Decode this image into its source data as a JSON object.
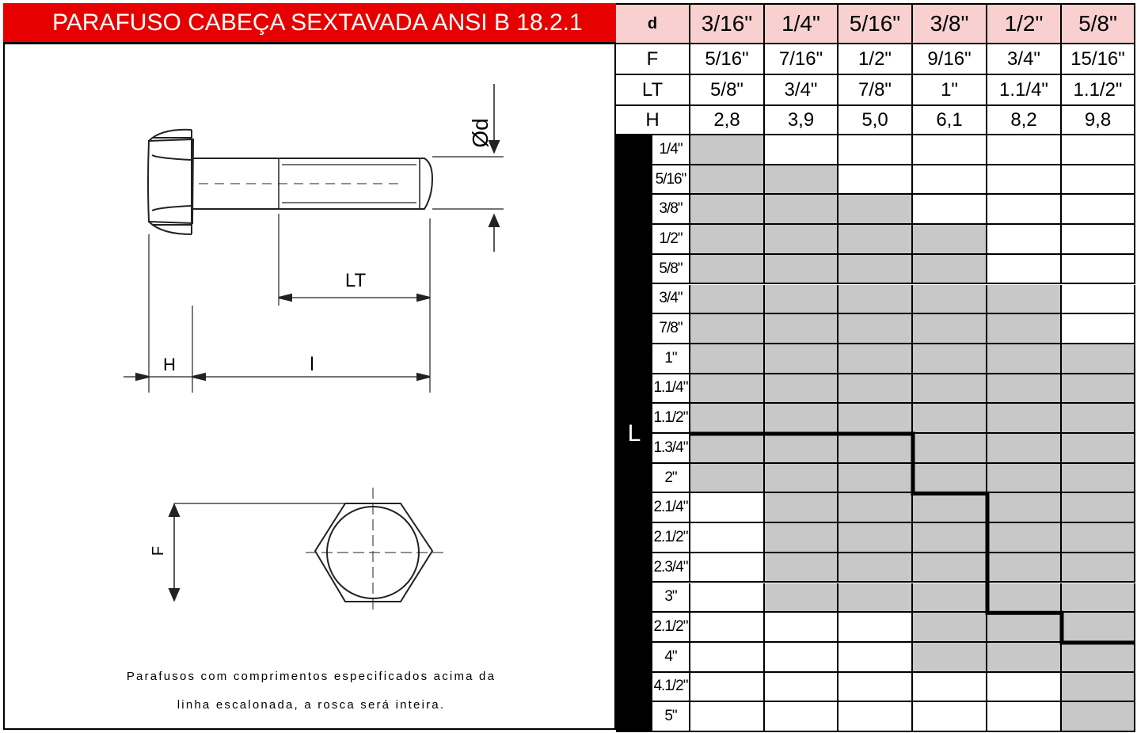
{
  "title": "PARAFUSO CABEÇA SEXTAVADA ANSI B 18.2.1",
  "note_lines": [
    "Parafusos com comprimentos especificados acima da",
    "linha escalonada, a rosca será inteira."
  ],
  "drawing": {
    "label_d": "Ød",
    "label_lt": "LT",
    "label_h": "H",
    "label_l": "l",
    "label_f": "F"
  },
  "table": {
    "header_d": "d",
    "diameters": [
      "3/16\"",
      "1/4\"",
      "5/16\"",
      "3/8\"",
      "1/2\"",
      "5/8\""
    ],
    "rows": [
      {
        "label": "F",
        "values": [
          "5/16\"",
          "7/16\"",
          "1/2\"",
          "9/16\"",
          "3/4\"",
          "15/16\""
        ]
      },
      {
        "label": "LT",
        "values": [
          "5/8\"",
          "3/4\"",
          "7/8\"",
          "1\"",
          "1.1/4\"",
          "1.1/2\""
        ]
      },
      {
        "label": "H",
        "values": [
          "2,8",
          "3,9",
          "5,0",
          "6,1",
          "8,2",
          "9,8"
        ]
      }
    ],
    "length_axis_label": "L",
    "lengths": [
      "1/4\"",
      "5/16\"",
      "3/8\"",
      "1/2\"",
      "5/8\"",
      "3/4\"",
      "7/8\"",
      "1\"",
      "1.1/4\"",
      "1.1/2\"",
      "1.3/4\"",
      "2\"",
      "2.1/4\"",
      "2.1/2\"",
      "2.3/4\"",
      "3\"",
      "2.1/2\"",
      "4\"",
      "4.1/2\"",
      "5\""
    ],
    "availability": [
      [
        1,
        0,
        0,
        0,
        0,
        0
      ],
      [
        1,
        1,
        0,
        0,
        0,
        0
      ],
      [
        1,
        1,
        1,
        0,
        0,
        0
      ],
      [
        1,
        1,
        1,
        1,
        0,
        0
      ],
      [
        1,
        1,
        1,
        1,
        0,
        0
      ],
      [
        1,
        1,
        1,
        1,
        1,
        0
      ],
      [
        1,
        1,
        1,
        1,
        1,
        0
      ],
      [
        1,
        1,
        1,
        1,
        1,
        1
      ],
      [
        1,
        1,
        1,
        1,
        1,
        1
      ],
      [
        1,
        1,
        1,
        1,
        1,
        1
      ],
      [
        1,
        1,
        1,
        1,
        1,
        1
      ],
      [
        1,
        1,
        1,
        1,
        1,
        1
      ],
      [
        0,
        1,
        1,
        1,
        1,
        1
      ],
      [
        0,
        1,
        1,
        1,
        1,
        1
      ],
      [
        0,
        1,
        1,
        1,
        1,
        1
      ],
      [
        0,
        1,
        1,
        1,
        1,
        1
      ],
      [
        0,
        0,
        0,
        1,
        1,
        1
      ],
      [
        0,
        0,
        0,
        1,
        1,
        1
      ],
      [
        0,
        0,
        0,
        0,
        0,
        1
      ],
      [
        0,
        0,
        0,
        0,
        0,
        1
      ]
    ],
    "full_thread_limit_row_index": [
      10,
      10,
      10,
      12,
      16,
      17
    ],
    "colors": {
      "available": "#c8c8c8",
      "unavailable": "#ffffff",
      "header_d_bg": "#f8d0d0",
      "axis_bg": "#000000"
    }
  }
}
